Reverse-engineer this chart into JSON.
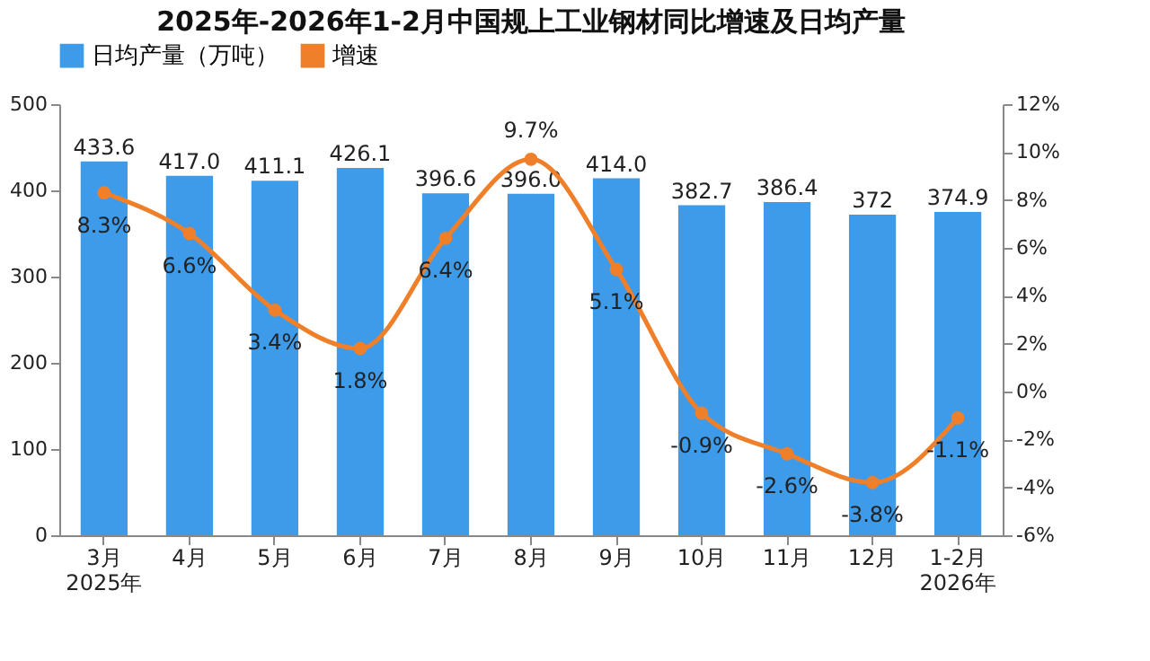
{
  "chart_data": {
    "type": "bar",
    "title": "2025年-2026年1-2月中国规上工业钢材同比增速及日均产量",
    "categories": [
      "3月\n2025年",
      "4月",
      "5月",
      "6月",
      "7月",
      "8月",
      "9月",
      "10月",
      "11月",
      "12月",
      "1-2月\n2026年"
    ],
    "series": [
      {
        "name": "日均产量（万吨）",
        "type": "bar",
        "color": "#3d9be9",
        "values": [
          433.6,
          417.0,
          411.1,
          426.1,
          396.6,
          396.0,
          414.0,
          382.7,
          386.4,
          372,
          374.9
        ],
        "value_labels": [
          "433.6",
          "417.0",
          "411.1",
          "426.1",
          "396.6",
          "396.0",
          "414.0",
          "382.7",
          "386.4",
          "372",
          "374.9"
        ]
      },
      {
        "name": "增速",
        "type": "line",
        "axis": "y2",
        "color": "#f07f2a",
        "marker": "circle",
        "values": [
          8.3,
          6.6,
          3.4,
          1.8,
          6.4,
          9.7,
          5.1,
          -0.9,
          -2.6,
          -3.8,
          -1.1
        ],
        "value_labels": [
          "8.3%",
          "6.6%",
          "3.4%",
          "1.8%",
          "6.4%",
          "9.7%",
          "5.1%",
          "-0.9%",
          "-2.6%",
          "-3.8%",
          "-1.1%"
        ]
      }
    ],
    "ylim": [
      0,
      500
    ],
    "yticks": [
      0,
      100,
      200,
      300,
      400,
      500
    ],
    "y2lim": [
      -6,
      12
    ],
    "y2ticks": [
      {
        "value": -6,
        "label": "-6%"
      },
      {
        "value": -4,
        "label": "-4%"
      },
      {
        "value": -2,
        "label": "-2%"
      },
      {
        "value": 0,
        "label": "0%"
      },
      {
        "value": 2,
        "label": "2%"
      },
      {
        "value": 4,
        "label": "4%"
      },
      {
        "value": 6,
        "label": "6%"
      },
      {
        "value": 8,
        "label": "8%"
      },
      {
        "value": 10,
        "label": "10%"
      },
      {
        "value": 12,
        "label": "12%"
      }
    ],
    "grid": false,
    "legend": "top"
  }
}
